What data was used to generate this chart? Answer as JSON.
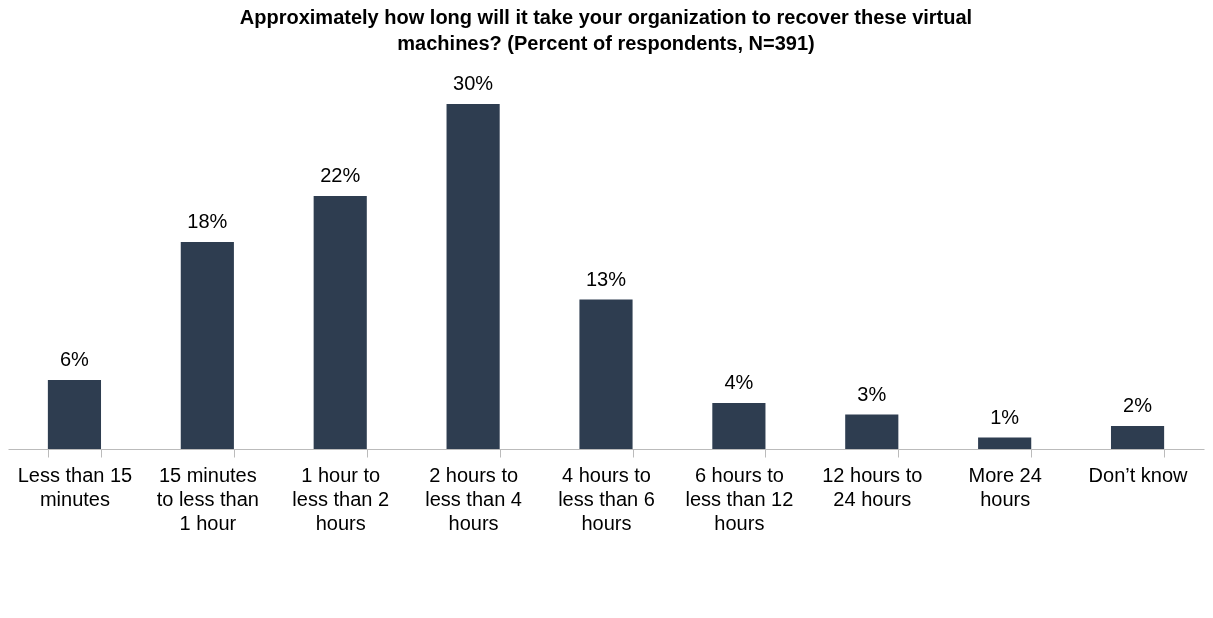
{
  "chart_data": {
    "type": "bar",
    "title": "Approximately how long will it take your organization to recover these virtual machines? (Percent of respondents, N=391)",
    "categories": [
      "Less than 15 minutes",
      "15 minutes to less than 1 hour",
      "1 hour to less than 2 hours",
      "2 hours to less than 4 hours",
      "4 hours to less than 6 hours",
      "6 hours to less than 12 hours",
      "12 hours to 24 hours",
      "More 24 hours",
      "Don’t know"
    ],
    "values": [
      6,
      18,
      22,
      30,
      13,
      4,
      3,
      1,
      2
    ],
    "value_labels": [
      "6%",
      "18%",
      "22%",
      "30%",
      "13%",
      "4%",
      "3%",
      "1%",
      "2%"
    ],
    "color": "#2e3d50"
  }
}
